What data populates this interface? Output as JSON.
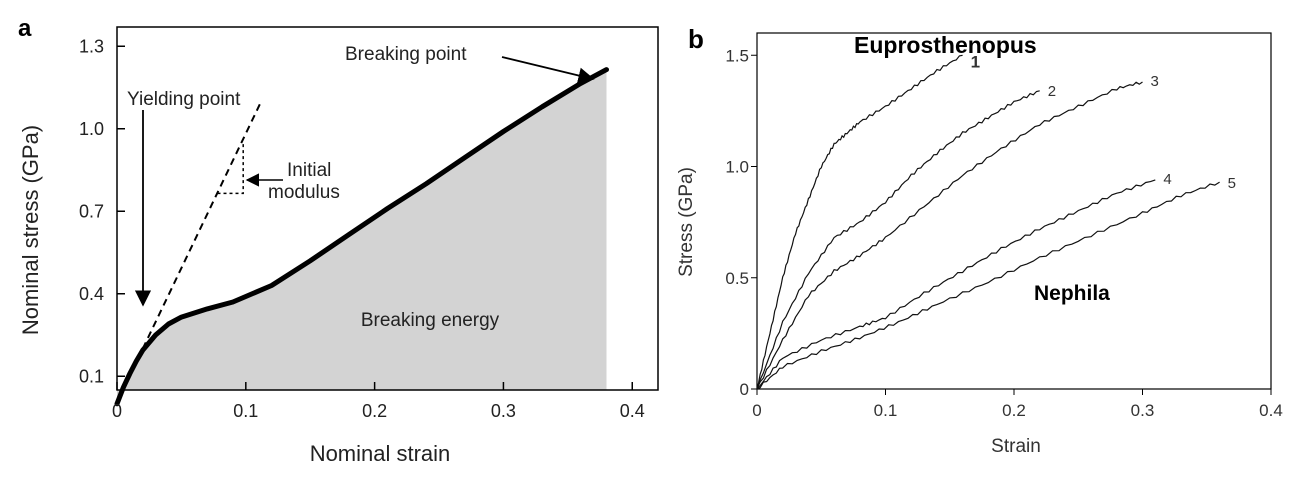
{
  "chart_data": [
    {
      "panel_label": "a",
      "type": "line",
      "xlabel": "Nominal strain",
      "ylabel": "Nominal stress (GPa)",
      "xlim": [
        0,
        0.42
      ],
      "ylim": [
        0.05,
        1.37
      ],
      "xticks": [
        0,
        0.1,
        0.2,
        0.3,
        0.4
      ],
      "xtick_labels": [
        "0",
        "0.1",
        "0.2",
        "0.3",
        "0.4"
      ],
      "yticks": [
        0.1,
        0.4,
        0.7,
        1.0,
        1.3
      ],
      "ytick_labels": [
        "0.1",
        "0.4",
        "0.7",
        "1.0",
        "1.3"
      ],
      "grid": false,
      "series": [
        {
          "x": [
            0,
            0.005,
            0.01,
            0.015,
            0.02,
            0.03,
            0.04,
            0.05,
            0.07,
            0.09,
            0.12,
            0.15,
            0.18,
            0.21,
            0.24,
            0.27,
            0.3,
            0.33,
            0.36,
            0.38
          ],
          "y": [
            0,
            0.06,
            0.11,
            0.155,
            0.195,
            0.25,
            0.29,
            0.315,
            0.345,
            0.37,
            0.43,
            0.52,
            0.615,
            0.71,
            0.8,
            0.895,
            0.99,
            1.08,
            1.165,
            1.215
          ]
        }
      ],
      "filled_area_label": "Breaking energy",
      "fill_color": "#d3d3d3",
      "initial_modulus_line": {
        "x": [
          0.02,
          0.112
        ],
        "y": [
          0.2,
          1.1
        ]
      },
      "modulus_triangle": {
        "x": [
          0.078,
          0.098,
          0.098
        ],
        "y": [
          0.765,
          0.765,
          0.945
        ]
      },
      "annotations": [
        {
          "text": "Breaking point",
          "target": [
            0.38,
            1.215
          ]
        },
        {
          "text": "Yielding point",
          "target": [
            0.02,
            0.2
          ]
        },
        {
          "text": "Initial",
          "line2": "modulus"
        }
      ]
    },
    {
      "panel_label": "b",
      "type": "line",
      "xlabel": "Strain",
      "ylabel": "Stress (GPa)",
      "xlim": [
        0,
        0.4
      ],
      "ylim": [
        0,
        1.6
      ],
      "xticks": [
        0,
        0.1,
        0.2,
        0.3,
        0.4
      ],
      "xtick_labels": [
        "0",
        "0.1",
        "0.2",
        "0.3",
        "0.4"
      ],
      "yticks": [
        0,
        0.5,
        1.0,
        1.5
      ],
      "ytick_labels": [
        "0",
        "0.5",
        "1.0",
        "1.5"
      ],
      "grid": false,
      "group_labels": [
        "Euprosthenopus",
        "Nephila"
      ],
      "series": [
        {
          "name": "1",
          "x": [
            0,
            0.01,
            0.02,
            0.03,
            0.04,
            0.05,
            0.06,
            0.07,
            0.08,
            0.1,
            0.12,
            0.14,
            0.16
          ],
          "y": [
            0,
            0.25,
            0.5,
            0.7,
            0.85,
            1.0,
            1.1,
            1.15,
            1.2,
            1.27,
            1.35,
            1.43,
            1.5
          ]
        },
        {
          "name": "2",
          "x": [
            0,
            0.02,
            0.04,
            0.06,
            0.08,
            0.1,
            0.12,
            0.14,
            0.16,
            0.18,
            0.2,
            0.22
          ],
          "y": [
            0,
            0.3,
            0.52,
            0.68,
            0.75,
            0.84,
            0.96,
            1.06,
            1.15,
            1.22,
            1.29,
            1.34
          ]
        },
        {
          "name": "3",
          "x": [
            0,
            0.02,
            0.04,
            0.06,
            0.08,
            0.1,
            0.13,
            0.16,
            0.19,
            0.22,
            0.25,
            0.28,
            0.3
          ],
          "y": [
            0,
            0.22,
            0.42,
            0.53,
            0.6,
            0.68,
            0.82,
            0.96,
            1.08,
            1.19,
            1.27,
            1.35,
            1.38
          ]
        },
        {
          "name": "4",
          "x": [
            0,
            0.02,
            0.05,
            0.08,
            0.1,
            0.13,
            0.16,
            0.19,
            0.22,
            0.25,
            0.28,
            0.31
          ],
          "y": [
            0,
            0.14,
            0.22,
            0.28,
            0.32,
            0.43,
            0.53,
            0.63,
            0.72,
            0.8,
            0.88,
            0.94
          ]
        },
        {
          "name": "5",
          "x": [
            0,
            0.02,
            0.05,
            0.08,
            0.11,
            0.14,
            0.18,
            0.22,
            0.26,
            0.3,
            0.33,
            0.36
          ],
          "y": [
            0,
            0.1,
            0.17,
            0.23,
            0.3,
            0.38,
            0.48,
            0.59,
            0.69,
            0.79,
            0.87,
            0.93
          ]
        }
      ]
    }
  ]
}
